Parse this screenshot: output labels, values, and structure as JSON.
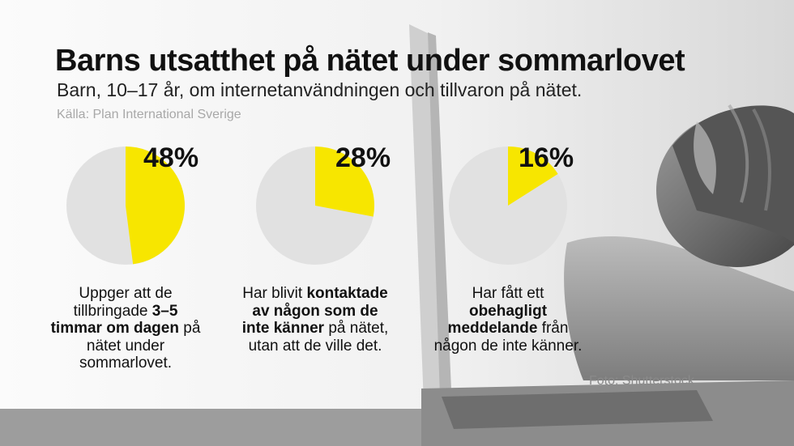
{
  "header": {
    "title": "Barns utsatthet på nätet under sommarlovet",
    "subtitle": "Barn, 10–17 år, om internetanvändningen och tillvaron på nätet.",
    "source": "Källa: Plan International Sverige"
  },
  "photo_credit": "Foto: Shutterstock",
  "colors": {
    "highlight": "#f7e600",
    "rest": "#e1e1e1"
  },
  "chart_data": [
    {
      "type": "pie",
      "values": [
        48,
        52
      ],
      "value_label": "48%",
      "description": [
        {
          "text": "Uppger att de tillbringade ",
          "bold": false
        },
        {
          "text": "3–5 timmar om dagen",
          "bold": true
        },
        {
          "text": " på nätet under sommarlovet.",
          "bold": false
        }
      ]
    },
    {
      "type": "pie",
      "values": [
        28,
        72
      ],
      "value_label": "28%",
      "description": [
        {
          "text": "Har blivit ",
          "bold": false
        },
        {
          "text": "kontaktade av någon som de inte känner",
          "bold": true
        },
        {
          "text": " på nätet, utan att de ville det.",
          "bold": false
        }
      ]
    },
    {
      "type": "pie",
      "values": [
        16,
        84
      ],
      "value_label": "16%",
      "description": [
        {
          "text": "Har fått ett ",
          "bold": false
        },
        {
          "text": "obehagligt meddelande",
          "bold": true
        },
        {
          "text": " från någon de inte känner.",
          "bold": false
        }
      ]
    }
  ]
}
